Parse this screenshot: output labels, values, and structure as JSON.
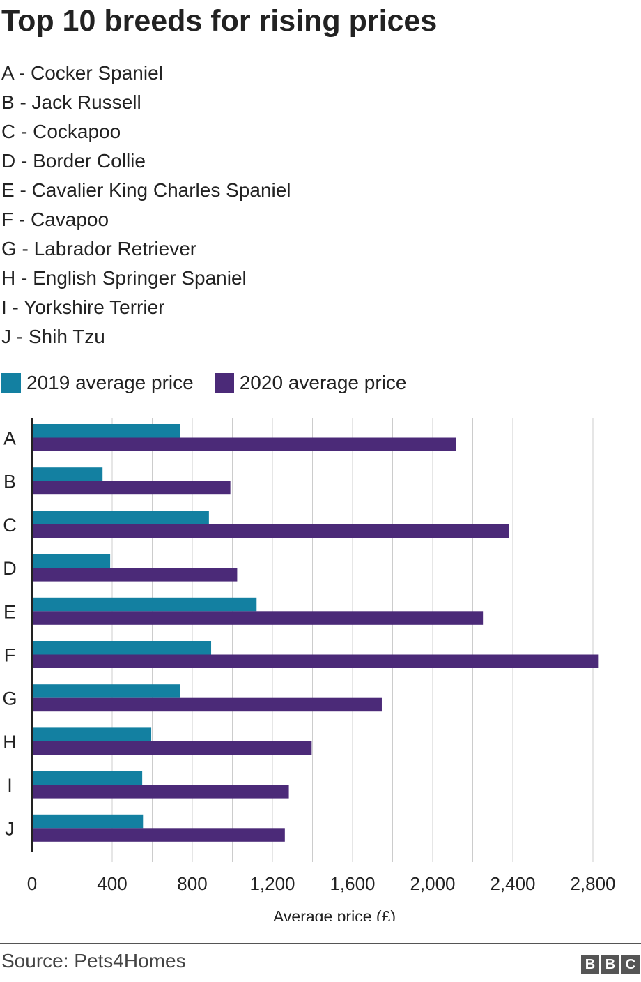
{
  "title": "Top 10 breeds for rising prices",
  "key": [
    "A - Cocker Spaniel",
    "B - Jack Russell",
    "C - Cockapoo",
    "D - Border Collie",
    "E - Cavalier King Charles Spaniel",
    "F - Cavapoo",
    "G - Labrador Retriever",
    "H - English Springer Spaniel",
    "I - Yorkshire Terrier",
    "J - Shih Tzu"
  ],
  "colors": {
    "series_2019": "#1380A1",
    "series_2020": "#4B2A78",
    "grid": "#cccccc",
    "axis": "#222222"
  },
  "chart_data": {
    "type": "bar",
    "orientation": "horizontal",
    "categories": [
      "A",
      "B",
      "C",
      "D",
      "E",
      "F",
      "G",
      "H",
      "I",
      "J"
    ],
    "series": [
      {
        "name": "2019 average price",
        "values": [
          739,
          352,
          883,
          390,
          1121,
          894,
          740,
          595,
          550,
          554
        ]
      },
      {
        "name": "2020 average price",
        "values": [
          2117,
          990,
          2381,
          1024,
          2251,
          2829,
          1746,
          1396,
          1282,
          1262
        ]
      }
    ],
    "xlabel": "Average price (£)",
    "ylabel": "",
    "xlim": [
      0,
      3000
    ],
    "xticks": [
      0,
      400,
      800,
      1200,
      1600,
      2000,
      2400,
      2800
    ],
    "xtick_labels": [
      "0",
      "400",
      "800",
      "1,200",
      "1,600",
      "2,000",
      "2,400",
      "2,800"
    ],
    "grid": true,
    "legend": "top-left"
  },
  "source": "Source: Pets4Homes",
  "logo": {
    "letters": [
      "B",
      "B",
      "C"
    ]
  }
}
